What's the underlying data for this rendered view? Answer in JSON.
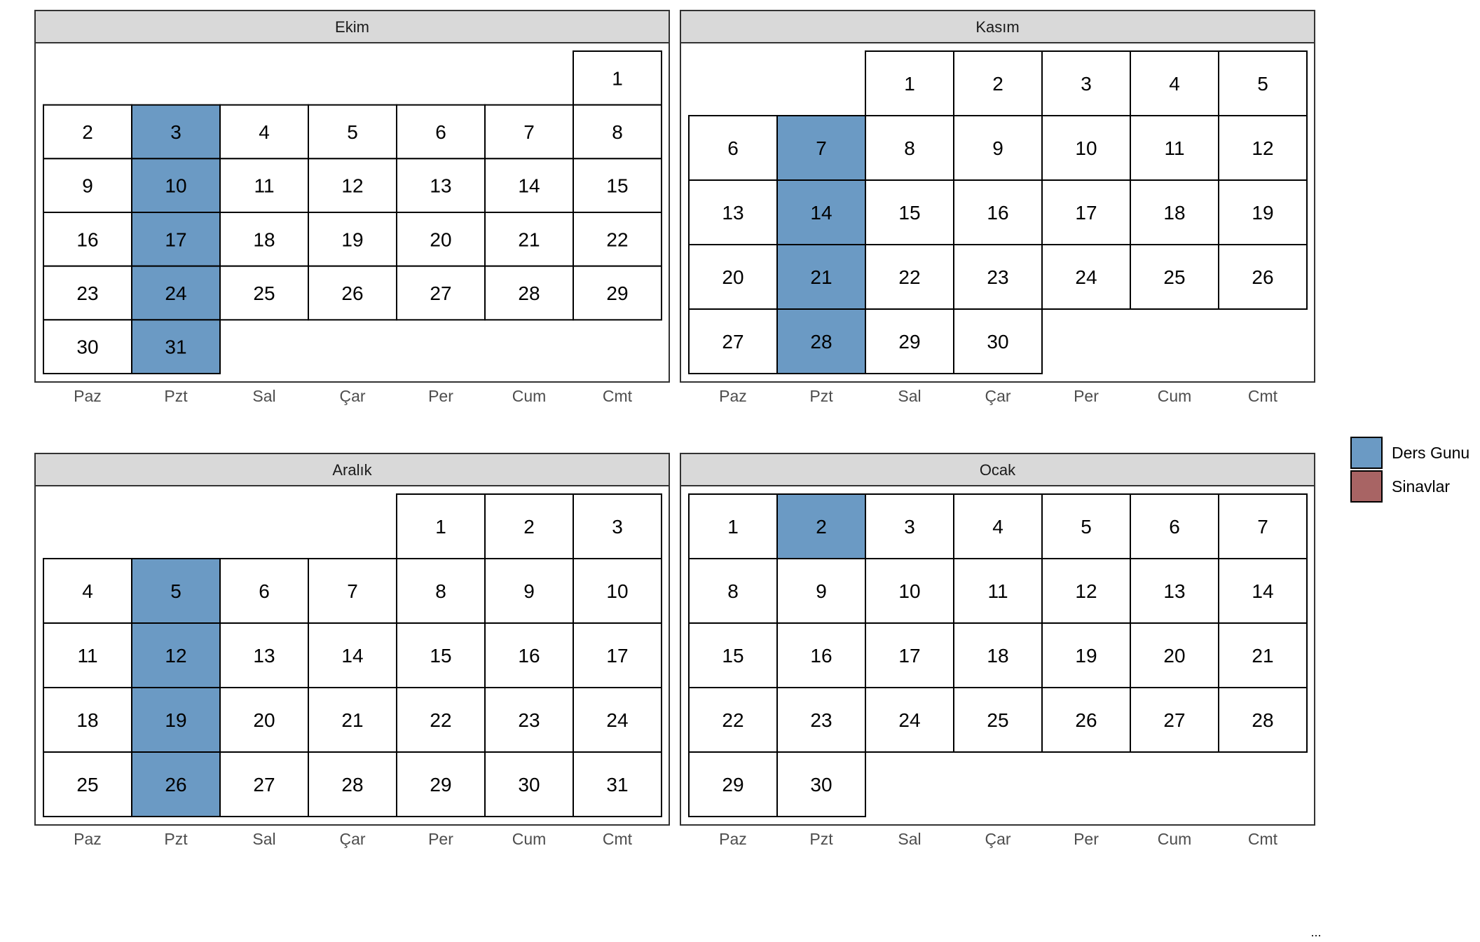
{
  "chart_data": {
    "type": "heatmap",
    "layout": "facet-grid 2x2 monthly calendars",
    "weekday_labels": [
      "Paz",
      "Pzt",
      "Sal",
      "Çar",
      "Per",
      "Cum",
      "Cmt"
    ],
    "legend": {
      "placement": "right",
      "entries": [
        {
          "label": "Ders Gunu",
          "color": "#6b9ac4"
        },
        {
          "label": "Sinavlar",
          "color": "#a86464"
        }
      ]
    },
    "colors": {
      "strip": "#d9d9d9",
      "tile_default": "#ffffff",
      "tile_border": "#000000",
      "panel_border": "#333333",
      "axis_text": "#4d4d4d"
    },
    "months": [
      {
        "name": "Ekim",
        "days_in_month": 31,
        "first_weekday": 6,
        "highlight": {
          "Ders Gunu": [
            3,
            10,
            17,
            24,
            31
          ],
          "Sinavlar": []
        }
      },
      {
        "name": "Kasım",
        "days_in_month": 30,
        "first_weekday": 2,
        "highlight": {
          "Ders Gunu": [
            7,
            14,
            21,
            28
          ],
          "Sinavlar": []
        }
      },
      {
        "name": "Aralık",
        "days_in_month": 31,
        "first_weekday": 4,
        "highlight": {
          "Ders Gunu": [
            5,
            12,
            19,
            26
          ],
          "Sinavlar": []
        }
      },
      {
        "name": "Ocak",
        "days_in_month": 30,
        "first_weekday": 0,
        "highlight": {
          "Ders Gunu": [
            2
          ],
          "Sinavlar": []
        }
      }
    ]
  },
  "footer_note": "..."
}
